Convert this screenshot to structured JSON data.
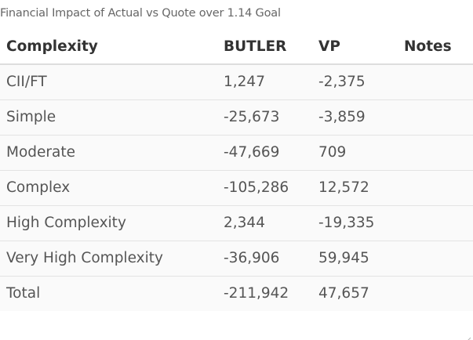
{
  "caption": "Financial Impact of Actual vs Quote over 1.14 Goal",
  "table": {
    "headers": {
      "complexity": "Complexity",
      "butler": "BUTLER",
      "vp": "VP",
      "notes": "Notes"
    },
    "rows": [
      {
        "complexity": "CII/FT",
        "butler": "1,247",
        "vp": "-2,375",
        "notes": ""
      },
      {
        "complexity": "Simple",
        "butler": "-25,673",
        "vp": "-3,859",
        "notes": ""
      },
      {
        "complexity": "Moderate",
        "butler": "-47,669",
        "vp": "709",
        "notes": ""
      },
      {
        "complexity": "Complex",
        "butler": "-105,286",
        "vp": "12,572",
        "notes": ""
      },
      {
        "complexity": "High Complexity",
        "butler": "2,344",
        "vp": "-19,335",
        "notes": ""
      },
      {
        "complexity": "Very High Complexity",
        "butler": "-36,906",
        "vp": "59,945",
        "notes": ""
      },
      {
        "complexity": "Total",
        "butler": "-211,942",
        "vp": "47,657",
        "notes": ""
      }
    ]
  }
}
